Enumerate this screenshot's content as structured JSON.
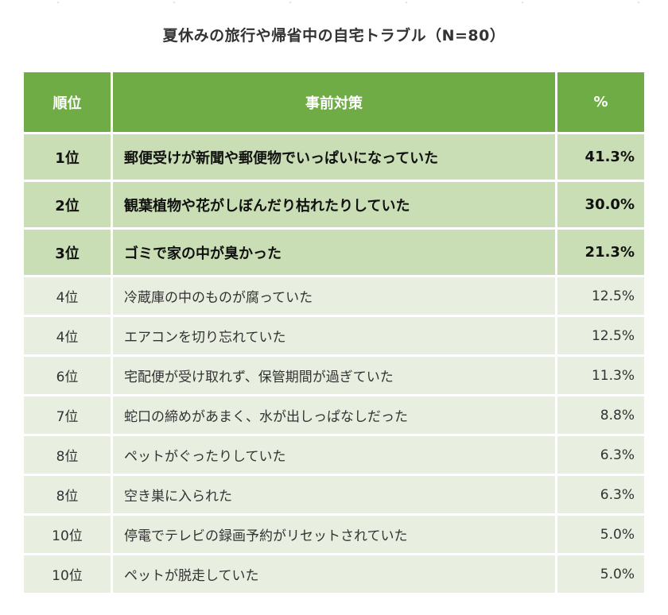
{
  "title": "夏休みの旅行や帰省中の自宅トラブル（N=80）",
  "headers": {
    "rank": "順位",
    "item": "事前対策",
    "pct": "%"
  },
  "rows": [
    {
      "rank": "1位",
      "item": "郵便受けが新聞や郵便物でいっぱいになっていた",
      "pct": "41.3%"
    },
    {
      "rank": "2位",
      "item": "観葉植物や花がしぼんだり枯れたりしていた",
      "pct": "30.0%"
    },
    {
      "rank": "3位",
      "item": "ゴミで家の中が臭かった",
      "pct": "21.3%"
    },
    {
      "rank": "4位",
      "item": "冷蔵庫の中のものが腐っていた",
      "pct": "12.5%"
    },
    {
      "rank": "4位",
      "item": "エアコンを切り忘れていた",
      "pct": "12.5%"
    },
    {
      "rank": "6位",
      "item": "宅配便が受け取れず、保管期間が過ぎていた",
      "pct": "11.3%"
    },
    {
      "rank": "7位",
      "item": "蛇口の締めがあまく、水が出しっぱなしだった",
      "pct": "8.8%"
    },
    {
      "rank": "8位",
      "item": "ペットがぐったりしていた",
      "pct": "6.3%"
    },
    {
      "rank": "8位",
      "item": "空き巣に入られた",
      "pct": "6.3%"
    },
    {
      "rank": "10位",
      "item": "停電でテレビの録画予約がリセットされていた",
      "pct": "5.0%"
    },
    {
      "rank": "10位",
      "item": "ペットが脱走していた",
      "pct": "5.0%"
    }
  ],
  "colors": {
    "header": "#6fac46",
    "top_rows": "#c9deb4",
    "rows": "#e8efe0"
  }
}
